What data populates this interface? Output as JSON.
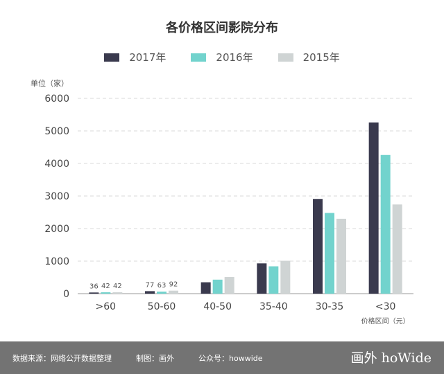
{
  "chart_data": {
    "type": "bar",
    "title": "各价格区间影院分布",
    "unit_label": "单位（家）",
    "xlabel": "价格区间（元）",
    "ylabel": "",
    "ylim": [
      0,
      6000
    ],
    "yticks": [
      "0",
      "1000",
      "2000",
      "3000",
      "4000",
      "5000",
      "6000"
    ],
    "categories": [
      ">60",
      "50-60",
      "40-50",
      "35-40",
      "30-35",
      "<30"
    ],
    "series": [
      {
        "name": "2017年",
        "color": "#3a3a4e",
        "values": [
          36,
          77,
          350,
          930,
          2910,
          5260
        ]
      },
      {
        "name": "2016年",
        "color": "#72d3cd",
        "values": [
          42,
          63,
          430,
          840,
          2480,
          4260
        ]
      },
      {
        "name": "2015年",
        "color": "#cfd4d4",
        "values": [
          42,
          92,
          510,
          1010,
          2300,
          2740
        ]
      }
    ],
    "labeled_categories": [
      0,
      1
    ],
    "grid": true,
    "legend_position": "top-center"
  },
  "footer": {
    "source": "数据来源：网络公开数据整理",
    "credit": "制图：画外",
    "account": "公众号：howwide",
    "logo": "画外 hoWide"
  }
}
